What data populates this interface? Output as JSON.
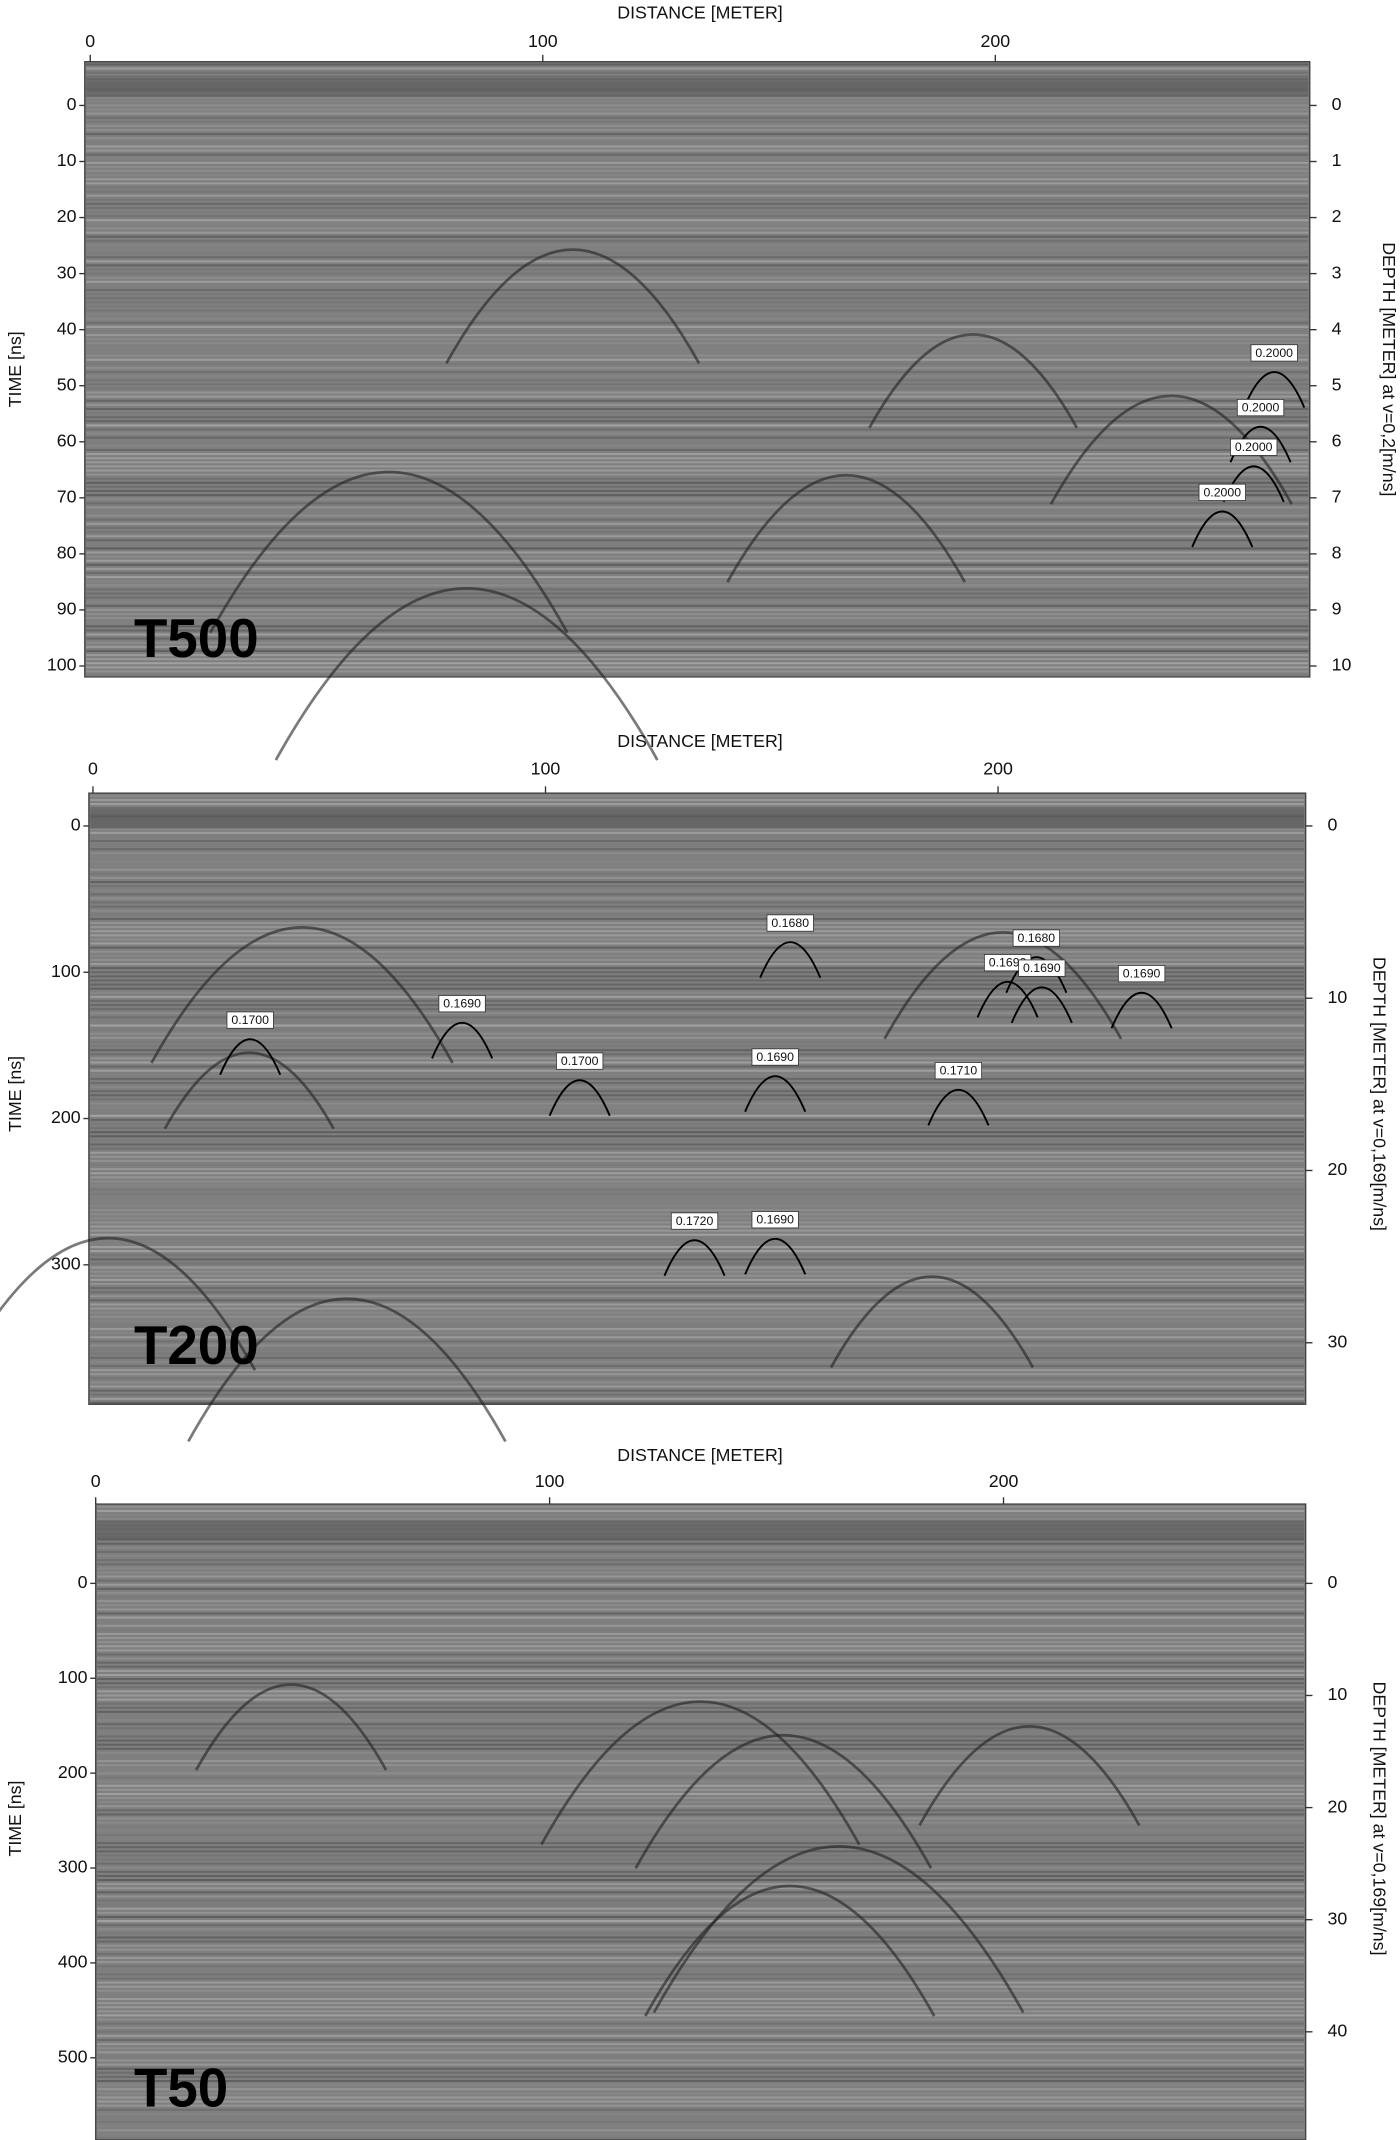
{
  "panels": [
    {
      "label": "T500",
      "x_axis": {
        "title": "DISTANCE [METER]",
        "ticks": [
          0,
          100,
          200
        ]
      },
      "left_axis": {
        "title": "TIME [ns]",
        "ticks": [
          0,
          10,
          20,
          30,
          40,
          50,
          60,
          70,
          80,
          90,
          100
        ]
      },
      "right_axis": {
        "title": "DEPTH [METER] at v=0,2[m/ns]",
        "ticks": [
          0,
          1,
          2,
          3,
          4,
          5,
          6,
          7,
          8,
          9,
          10
        ]
      },
      "annotations": [
        "0.2000",
        "0.2000",
        "0.2000",
        "0.2000"
      ]
    },
    {
      "label": "T200",
      "x_axis": {
        "title": "DISTANCE [METER]",
        "ticks": [
          0,
          100,
          200
        ]
      },
      "left_axis": {
        "title": "TIME [ns]",
        "ticks": [
          0,
          100,
          200,
          300
        ]
      },
      "right_axis": {
        "title": "DEPTH [METER] at v=0,169[m/ns]",
        "ticks": [
          0,
          10,
          20,
          30
        ]
      },
      "annotations": [
        "0.1700",
        "0.1690",
        "0.1700",
        "0.1690",
        "0.1680",
        "0.1680",
        "0.1690",
        "0.1690",
        "0.1690",
        "0.1710",
        "0.1720",
        "0.1690"
      ]
    },
    {
      "label": "T50",
      "x_axis": {
        "title": "DISTANCE [METER]",
        "ticks": [
          0,
          100,
          200
        ]
      },
      "left_axis": {
        "title": "TIME [ns]",
        "ticks": [
          0,
          100,
          200,
          300,
          400,
          500
        ]
      },
      "right_axis": {
        "title": "DEPTH [METER] at v=0,169[m/ns]",
        "ticks": [
          0,
          10,
          20,
          30,
          40
        ]
      },
      "annotations": []
    }
  ]
}
